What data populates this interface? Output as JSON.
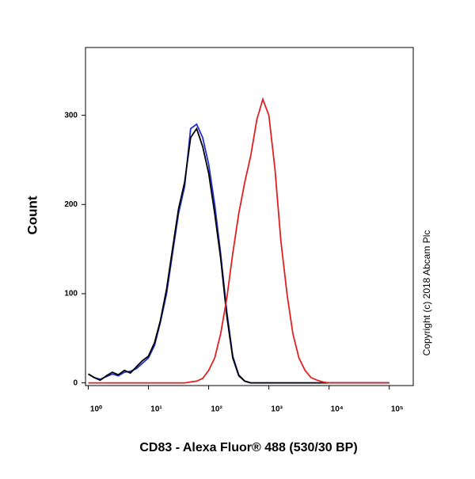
{
  "chart_data": {
    "type": "line",
    "y_label": "Count",
    "x_label": "CD83 - Alexa Fluor® 488 (530/30 BP)",
    "annotation": "Copyright (c) 2018 Abcam Plc",
    "x_scale": "log",
    "xlim": [
      0.9,
      250000
    ],
    "ylim": [
      -3,
      376
    ],
    "xticks": [
      {
        "value": 1,
        "label": "10⁰"
      },
      {
        "value": 10,
        "label": "10¹"
      },
      {
        "value": 100,
        "label": "10²"
      },
      {
        "value": 1000,
        "label": "10³"
      },
      {
        "value": 10000,
        "label": "10⁴"
      },
      {
        "value": 100000,
        "label": "10⁵"
      }
    ],
    "yticks": [
      0,
      100,
      200,
      300
    ],
    "x": [
      1,
      1.26,
      1.58,
      2,
      2.51,
      3.16,
      3.98,
      5.01,
      6.31,
      7.94,
      10,
      12.6,
      15.8,
      20,
      25.1,
      31.6,
      39.8,
      50.1,
      63.1,
      79.4,
      100,
      126,
      158,
      200,
      251,
      316,
      398,
      501,
      631,
      794,
      1000,
      1260,
      1580,
      2000,
      2510,
      3160,
      3980,
      5010,
      6310,
      7940,
      10000,
      12600,
      15800,
      20000,
      25100,
      31600,
      39800,
      50100,
      63100,
      79400,
      100000
    ],
    "series": [
      {
        "color": "#2030d0",
        "values": [
          10,
          6,
          4,
          7,
          10,
          8,
          12,
          13,
          16,
          22,
          28,
          42,
          68,
          100,
          145,
          190,
          220,
          285,
          290,
          275,
          245,
          200,
          145,
          80,
          30,
          9,
          2,
          0,
          0,
          0,
          0,
          0,
          0,
          0,
          0,
          0,
          0,
          0,
          0,
          0,
          0,
          0,
          0,
          0,
          0,
          0,
          0,
          0,
          0,
          0,
          0
        ]
      },
      {
        "color": "#000000",
        "values": [
          10,
          6,
          3,
          8,
          12,
          9,
          14,
          11,
          18,
          25,
          30,
          45,
          70,
          105,
          150,
          195,
          225,
          275,
          285,
          265,
          235,
          190,
          140,
          75,
          28,
          8,
          2,
          0,
          0,
          0,
          0,
          0,
          0,
          0,
          0,
          0,
          0,
          0,
          0,
          0,
          0,
          0,
          0,
          0,
          0,
          0,
          0,
          0,
          0,
          0,
          0
        ]
      },
      {
        "color": "#e02020",
        "values": [
          0,
          0,
          0,
          0,
          0,
          0,
          0,
          0,
          0,
          0,
          0,
          0,
          0,
          0,
          0,
          0,
          0,
          1,
          2,
          5,
          14,
          28,
          55,
          95,
          145,
          190,
          225,
          255,
          295,
          318,
          300,
          240,
          160,
          100,
          55,
          28,
          14,
          6,
          3,
          1,
          0,
          0,
          0,
          0,
          0,
          0,
          0,
          0,
          0,
          0,
          0
        ]
      }
    ]
  }
}
